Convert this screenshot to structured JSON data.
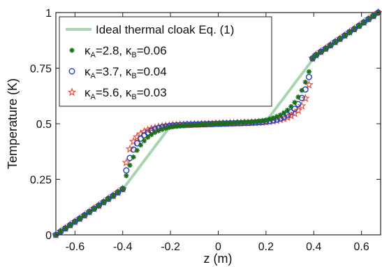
{
  "chart_data": {
    "type": "line",
    "xlabel": "z (m)",
    "ylabel": "Temperature (K)",
    "xlim": [
      -0.68,
      0.68
    ],
    "ylim": [
      0,
      1
    ],
    "x_ticks": [
      "-0.6",
      "-0.4",
      "-0.2",
      "0",
      "0.2",
      "0.4",
      "0.6"
    ],
    "x_tick_values": [
      -0.6,
      -0.4,
      -0.2,
      0,
      0.2,
      0.4,
      0.6
    ],
    "y_ticks": [
      "0",
      "0.25",
      "0.5",
      "0.75",
      "1"
    ],
    "y_tick_values": [
      0,
      0.25,
      0.5,
      0.75,
      1
    ],
    "grid": false,
    "legend_position": "top-left",
    "series": [
      {
        "name": "Ideal thermal cloak Eq. (1)",
        "kind": "line",
        "color": "#a8d5b0",
        "x": [
          -0.68,
          -0.4,
          -0.2,
          0.2,
          0.4,
          0.68
        ],
        "y": [
          0,
          0.205,
          0.49,
          0.51,
          0.795,
          1
        ]
      },
      {
        "name": "κA=2.8, κB=0.06",
        "label_parts": {
          "kappa": "κ",
          "subA": "A",
          "valA": "=2.8, ",
          "subB": "B",
          "valB": "=0.06"
        },
        "kind": "star",
        "color": "#1a6f1a",
        "x": [
          -0.68,
          -0.66,
          -0.64,
          -0.62,
          -0.6,
          -0.58,
          -0.56,
          -0.54,
          -0.52,
          -0.5,
          -0.48,
          -0.46,
          -0.44,
          -0.42,
          -0.4,
          -0.385,
          -0.37,
          -0.355,
          -0.34,
          -0.325,
          -0.31,
          -0.295,
          -0.28,
          -0.265,
          -0.25,
          -0.235,
          -0.22,
          -0.205,
          -0.19,
          -0.175,
          -0.16,
          -0.145,
          -0.13,
          -0.115,
          -0.1,
          -0.085,
          -0.07,
          -0.055,
          -0.04,
          -0.025,
          -0.01,
          0.005,
          0.02,
          0.035,
          0.05,
          0.065,
          0.08,
          0.095,
          0.11,
          0.125,
          0.14,
          0.155,
          0.17,
          0.185,
          0.2,
          0.215,
          0.23,
          0.245,
          0.26,
          0.275,
          0.29,
          0.305,
          0.32,
          0.335,
          0.35,
          0.365,
          0.38,
          0.395,
          0.41,
          0.43,
          0.45,
          0.47,
          0.49,
          0.51,
          0.53,
          0.55,
          0.57,
          0.59,
          0.61,
          0.63,
          0.65,
          0.67
        ],
        "y": [
          0.0,
          0.015,
          0.029,
          0.044,
          0.059,
          0.073,
          0.088,
          0.103,
          0.118,
          0.132,
          0.147,
          0.162,
          0.176,
          0.191,
          0.206,
          0.266,
          0.313,
          0.35,
          0.38,
          0.404,
          0.423,
          0.439,
          0.451,
          0.461,
          0.468,
          0.474,
          0.479,
          0.483,
          0.486,
          0.488,
          0.49,
          0.491,
          0.492,
          0.493,
          0.494,
          0.495,
          0.496,
          0.497,
          0.498,
          0.499,
          0.5,
          0.5,
          0.501,
          0.502,
          0.503,
          0.504,
          0.505,
          0.506,
          0.507,
          0.508,
          0.509,
          0.51,
          0.512,
          0.514,
          0.517,
          0.521,
          0.526,
          0.532,
          0.539,
          0.549,
          0.561,
          0.577,
          0.596,
          0.62,
          0.65,
          0.687,
          0.734,
          0.794,
          0.809,
          0.824,
          0.838,
          0.853,
          0.868,
          0.882,
          0.897,
          0.912,
          0.926,
          0.941,
          0.956,
          0.971,
          0.985,
          1.0
        ]
      },
      {
        "name": "κA=3.7, κB=0.04",
        "label_parts": {
          "kappa": "κ",
          "subA": "A",
          "valA": "=3.7, ",
          "subB": "B",
          "valB": "=0.04"
        },
        "kind": "circle",
        "color": "#1f3fc4",
        "x": [
          -0.68,
          -0.66,
          -0.64,
          -0.62,
          -0.6,
          -0.58,
          -0.56,
          -0.54,
          -0.52,
          -0.5,
          -0.48,
          -0.46,
          -0.44,
          -0.42,
          -0.4,
          -0.385,
          -0.37,
          -0.355,
          -0.34,
          -0.325,
          -0.31,
          -0.295,
          -0.28,
          -0.265,
          -0.25,
          -0.235,
          -0.22,
          -0.205,
          -0.19,
          -0.175,
          -0.16,
          -0.145,
          -0.13,
          -0.115,
          -0.1,
          -0.085,
          -0.07,
          -0.055,
          -0.04,
          -0.025,
          -0.01,
          0.005,
          0.02,
          0.035,
          0.05,
          0.065,
          0.08,
          0.095,
          0.11,
          0.125,
          0.14,
          0.155,
          0.17,
          0.185,
          0.2,
          0.215,
          0.23,
          0.245,
          0.26,
          0.275,
          0.29,
          0.305,
          0.32,
          0.335,
          0.35,
          0.365,
          0.38,
          0.395,
          0.41,
          0.43,
          0.45,
          0.47,
          0.49,
          0.51,
          0.53,
          0.55,
          0.57,
          0.59,
          0.61,
          0.63,
          0.65,
          0.67
        ],
        "y": [
          0.0,
          0.015,
          0.029,
          0.044,
          0.059,
          0.073,
          0.088,
          0.103,
          0.118,
          0.132,
          0.147,
          0.162,
          0.176,
          0.191,
          0.206,
          0.29,
          0.346,
          0.384,
          0.412,
          0.433,
          0.448,
          0.46,
          0.469,
          0.476,
          0.481,
          0.485,
          0.488,
          0.49,
          0.492,
          0.493,
          0.494,
          0.495,
          0.496,
          0.496,
          0.497,
          0.497,
          0.498,
          0.498,
          0.499,
          0.499,
          0.5,
          0.5,
          0.501,
          0.501,
          0.502,
          0.502,
          0.503,
          0.503,
          0.504,
          0.504,
          0.505,
          0.506,
          0.507,
          0.508,
          0.51,
          0.512,
          0.515,
          0.519,
          0.524,
          0.531,
          0.54,
          0.552,
          0.567,
          0.588,
          0.616,
          0.654,
          0.71,
          0.794,
          0.809,
          0.824,
          0.838,
          0.853,
          0.868,
          0.882,
          0.897,
          0.912,
          0.926,
          0.941,
          0.956,
          0.971,
          0.985,
          1.0
        ]
      },
      {
        "name": "κA=5.6, κB=0.03",
        "label_parts": {
          "kappa": "κ",
          "subA": "A",
          "valA": "=5.6, ",
          "subB": "B",
          "valB": "=0.03"
        },
        "kind": "pentagram",
        "color": "#e8503a",
        "x": [
          -0.68,
          -0.66,
          -0.64,
          -0.62,
          -0.6,
          -0.58,
          -0.56,
          -0.54,
          -0.52,
          -0.5,
          -0.48,
          -0.46,
          -0.44,
          -0.42,
          -0.4,
          -0.385,
          -0.37,
          -0.355,
          -0.34,
          -0.325,
          -0.31,
          -0.295,
          -0.28,
          -0.265,
          -0.25,
          -0.235,
          -0.22,
          -0.205,
          -0.19,
          -0.175,
          -0.16,
          -0.145,
          -0.13,
          -0.115,
          -0.1,
          -0.085,
          -0.07,
          -0.055,
          -0.04,
          -0.025,
          -0.01,
          0.005,
          0.02,
          0.035,
          0.05,
          0.065,
          0.08,
          0.095,
          0.11,
          0.125,
          0.14,
          0.155,
          0.17,
          0.185,
          0.2,
          0.215,
          0.23,
          0.245,
          0.26,
          0.275,
          0.29,
          0.305,
          0.32,
          0.335,
          0.35,
          0.365,
          0.38,
          0.395,
          0.41,
          0.43,
          0.45,
          0.47,
          0.49,
          0.51,
          0.53,
          0.55,
          0.57,
          0.59,
          0.61,
          0.63,
          0.65,
          0.67
        ],
        "y": [
          0.0,
          0.015,
          0.029,
          0.044,
          0.059,
          0.073,
          0.088,
          0.103,
          0.118,
          0.132,
          0.147,
          0.162,
          0.176,
          0.191,
          0.206,
          0.325,
          0.386,
          0.42,
          0.44,
          0.454,
          0.464,
          0.471,
          0.477,
          0.481,
          0.485,
          0.488,
          0.49,
          0.491,
          0.493,
          0.494,
          0.495,
          0.495,
          0.496,
          0.496,
          0.497,
          0.497,
          0.498,
          0.498,
          0.499,
          0.499,
          0.5,
          0.5,
          0.501,
          0.501,
          0.502,
          0.502,
          0.503,
          0.503,
          0.504,
          0.504,
          0.505,
          0.505,
          0.506,
          0.507,
          0.509,
          0.51,
          0.512,
          0.515,
          0.519,
          0.523,
          0.529,
          0.536,
          0.546,
          0.56,
          0.58,
          0.614,
          0.675,
          0.794,
          0.809,
          0.824,
          0.838,
          0.853,
          0.868,
          0.882,
          0.897,
          0.912,
          0.926,
          0.941,
          0.956,
          0.971,
          0.985,
          1.0
        ]
      }
    ]
  }
}
